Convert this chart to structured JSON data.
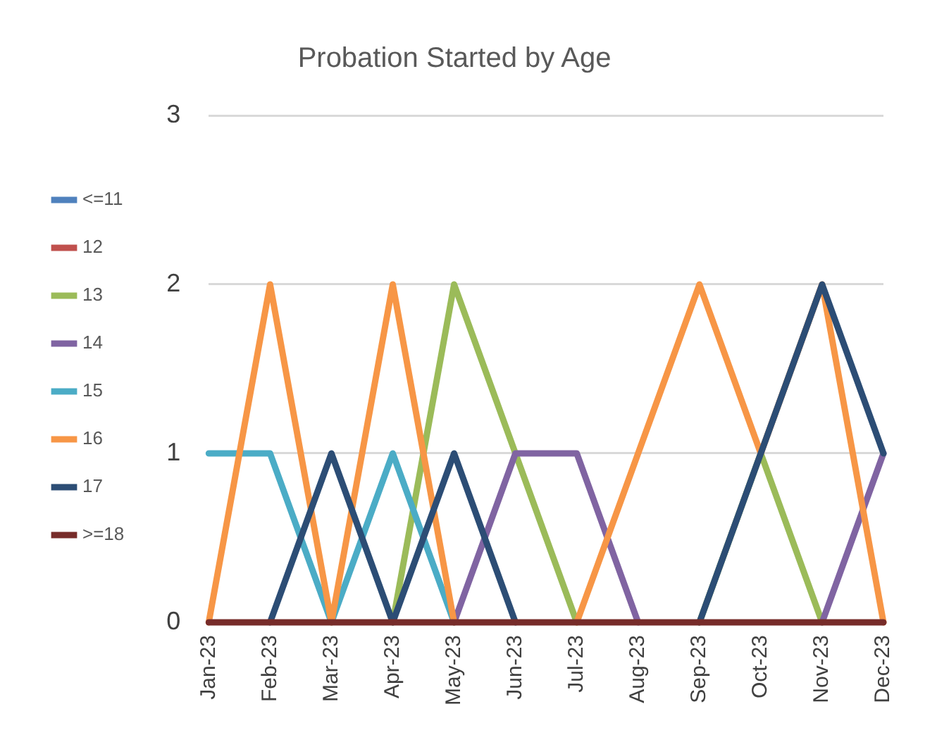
{
  "chart_data": {
    "type": "line",
    "title": "Probation Started by Age",
    "categories": [
      "Jan-23",
      "Feb-23",
      "Mar-23",
      "Apr-23",
      "May-23",
      "Jun-23",
      "Jul-23",
      "Aug-23",
      "Sep-23",
      "Oct-23",
      "Nov-23",
      "Dec-23"
    ],
    "series": [
      {
        "name": "<=11",
        "color": "#4f81bd",
        "values": [
          null,
          null,
          null,
          null,
          null,
          null,
          null,
          null,
          null,
          null,
          null,
          null
        ]
      },
      {
        "name": "12",
        "color": "#c0504d",
        "values": [
          null,
          null,
          null,
          null,
          null,
          null,
          null,
          null,
          null,
          null,
          null,
          null
        ]
      },
      {
        "name": "13",
        "color": "#9bbb59",
        "values": [
          null,
          null,
          null,
          0,
          2,
          1,
          0,
          null,
          0,
          1,
          0,
          null
        ]
      },
      {
        "name": "14",
        "color": "#8064a2",
        "values": [
          null,
          null,
          null,
          null,
          0,
          1,
          1,
          0,
          null,
          null,
          0,
          1
        ]
      },
      {
        "name": "15",
        "color": "#4bacc6",
        "values": [
          1,
          1,
          0,
          1,
          0,
          null,
          null,
          null,
          null,
          null,
          null,
          null
        ]
      },
      {
        "name": "16",
        "color": "#f79646",
        "values": [
          0,
          2,
          0,
          2,
          0,
          null,
          0,
          1,
          2,
          1,
          2,
          0
        ]
      },
      {
        "name": "17",
        "color": "#2c4d75",
        "values": [
          null,
          0,
          1,
          0,
          1,
          0,
          null,
          null,
          0,
          1,
          2,
          1
        ]
      },
      {
        "name": ">=18",
        "color": "#772c2a",
        "values": [
          0,
          0,
          0,
          0,
          0,
          0,
          0,
          0,
          0,
          0,
          0,
          0
        ]
      }
    ],
    "ylim": [
      0,
      3
    ],
    "yticks": [
      0,
      1,
      2,
      3
    ],
    "grid": "y",
    "legend": "left",
    "marker": "none",
    "line_style": "solid"
  }
}
